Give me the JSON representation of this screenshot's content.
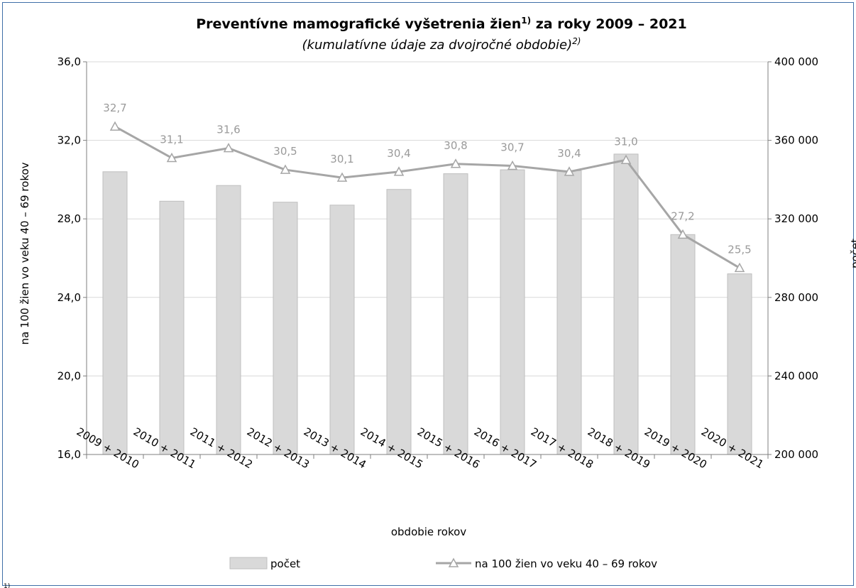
{
  "chart_data": {
    "type": "bar+line",
    "title": "Preventívne mamografické vyšetrenia žien",
    "title_sup": "1)",
    "title_suffix": " za roky 2009 – 2021",
    "subtitle": "(kumulatívne údaje za dvojročné obdobie)",
    "subtitle_sup": "2)",
    "xlabel": "obdobie rokov",
    "ylabel_left": "na 100 žien vo veku 40 – 69 rokov",
    "ylabel_right": "počet",
    "categories": [
      "2009 + 2010",
      "2010 + 2011",
      "2011 + 2012",
      "2012 + 2013",
      "2013 + 2014",
      "2014 + 2015",
      "2015 + 2016",
      "2016 + 2017",
      "2017 + 2018",
      "2018 + 2019",
      "2019 + 2020",
      "2020 + 2021"
    ],
    "left_axis": {
      "ylim": [
        16,
        36
      ],
      "ticks": [
        "16,0",
        "20,0",
        "24,0",
        "28,0",
        "32,0",
        "36,0"
      ],
      "tick_values": [
        16,
        20,
        24,
        28,
        32,
        36
      ]
    },
    "right_axis": {
      "ylim": [
        200000,
        400000
      ],
      "ticks": [
        "200 000",
        "240 000",
        "280 000",
        "320 000",
        "360 000",
        "400 000"
      ],
      "tick_values": [
        200000,
        240000,
        280000,
        320000,
        360000,
        400000
      ]
    },
    "series": [
      {
        "name": "počet",
        "type": "bar",
        "axis": "right",
        "values": [
          344000,
          329000,
          337000,
          328500,
          327000,
          335000,
          343000,
          345000,
          344500,
          353000,
          312000,
          292000
        ]
      },
      {
        "name": "na 100 žien vo veku 40 – 69 rokov",
        "type": "line",
        "axis": "left",
        "values": [
          32.7,
          31.1,
          31.6,
          30.5,
          30.1,
          30.4,
          30.8,
          30.7,
          30.4,
          31.0,
          27.2,
          25.5
        ],
        "labels": [
          "32,7",
          "31,1",
          "31,6",
          "30,5",
          "30,1",
          "30,4",
          "30,8",
          "30,7",
          "30,4",
          "31,0",
          "27,2",
          "25,5"
        ]
      }
    ],
    "legend_position": "bottom",
    "grid": true,
    "colors": {
      "bar_fill": "#d9d9d9",
      "bar_stroke": "#bfbfbf",
      "line": "#a6a6a6",
      "label": "#9a9a9a",
      "grid": "#d9d9d9",
      "frame": "#3f6fa8"
    }
  },
  "footnote_mark": "1)"
}
